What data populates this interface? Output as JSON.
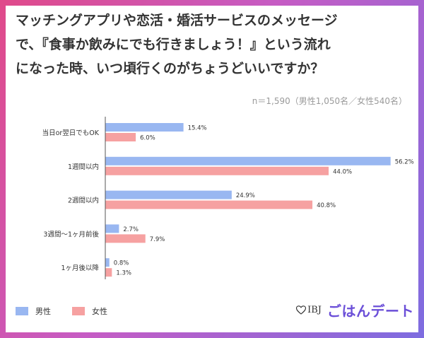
{
  "title_lines": [
    "マッチングアプリや恋活・婚活サービスのメッセージ",
    "で、『食事か飲みにでも行きましょう！』という流れ",
    "になった時、いつ頃行くのがちょうどいいですか？"
  ],
  "sample_note": "n＝1,590（男性1,050名／女性540名）",
  "legend": {
    "male": "男性",
    "female": "女性"
  },
  "brand": {
    "ibj": "IBJ",
    "name": "ごはんデート"
  },
  "colors": {
    "male": "#99b7f1",
    "female": "#f6a1a1"
  },
  "chart_data": {
    "type": "bar",
    "orientation": "horizontal",
    "categories": [
      "当日or翌日でもOK",
      "1週間以内",
      "2週間以内",
      "3週間〜1ヶ月前後",
      "1ヶ月後以降"
    ],
    "series": [
      {
        "name": "男性",
        "values": [
          15.4,
          56.2,
          24.9,
          2.7,
          0.8
        ],
        "labels": [
          "15.4%",
          "56.2%",
          "24.9%",
          "2.7%",
          "0.8%"
        ]
      },
      {
        "name": "女性",
        "values": [
          6.0,
          44.0,
          40.8,
          7.9,
          1.3
        ],
        "labels": [
          "6.0%",
          "44.0%",
          "40.8%",
          "7.9%",
          "1.3%"
        ]
      }
    ],
    "xlim": [
      0,
      60
    ],
    "grid": false,
    "legend_position": "bottom-left"
  }
}
